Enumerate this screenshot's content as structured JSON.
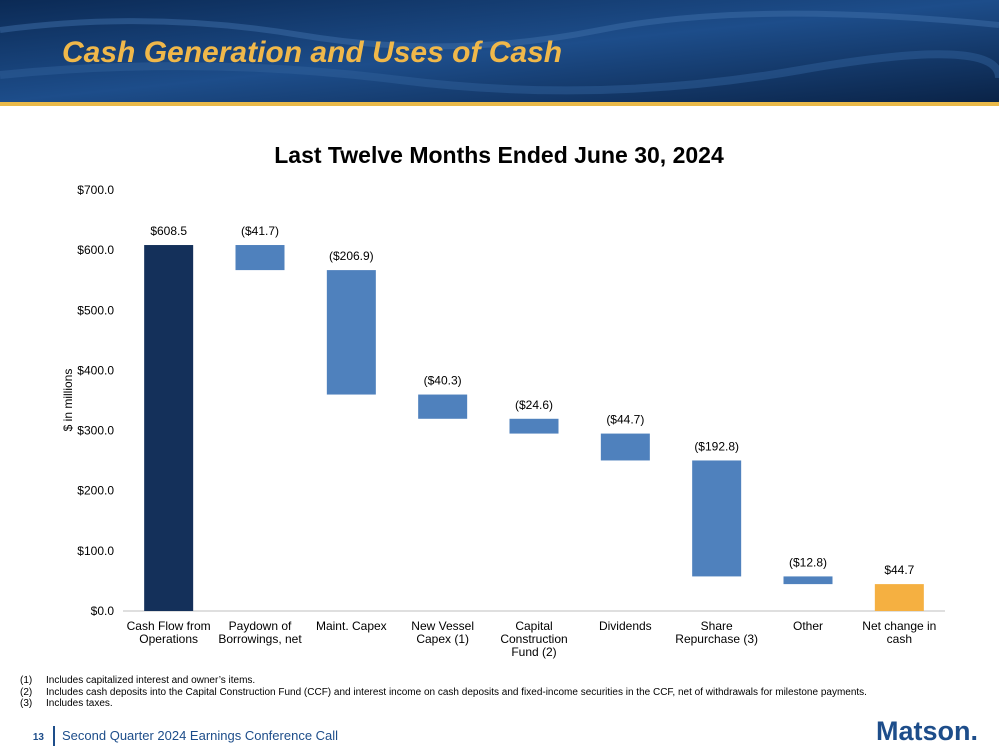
{
  "header": {
    "title": "Cash Generation and Uses of Cash"
  },
  "chart_data": {
    "type": "waterfall",
    "title": "Last Twelve Months Ended June 30, 2024",
    "y_label": "$ in millions",
    "categories": [
      "Cash Flow from Operations",
      "Paydown of Borrowings, net",
      "Maint. Capex",
      "New Vessel Capex (1)",
      "Capital Construction Fund (2)",
      "Dividends",
      "Share Repurchase (3)",
      "Other",
      "Net change in cash"
    ],
    "values": [
      608.5,
      -41.7,
      -206.9,
      -40.3,
      -24.6,
      -44.7,
      -192.8,
      -12.8,
      44.7
    ],
    "value_labels": [
      "$608.5",
      "($41.7)",
      "($206.9)",
      "($40.3)",
      "($24.6)",
      "($44.7)",
      "($192.8)",
      "($12.8)",
      "$44.7"
    ],
    "is_total": [
      true,
      false,
      false,
      false,
      false,
      false,
      false,
      false,
      true
    ],
    "colors": [
      "#14305a",
      "#4f81bd",
      "#4f81bd",
      "#4f81bd",
      "#4f81bd",
      "#4f81bd",
      "#4f81bd",
      "#4f81bd",
      "#f5b041"
    ],
    "ylim": [
      0,
      700
    ],
    "yticks": [
      {
        "value": 0,
        "label": "$0.0"
      },
      {
        "value": 100,
        "label": "$100.0"
      },
      {
        "value": 200,
        "label": "$200.0"
      },
      {
        "value": 300,
        "label": "$300.0"
      },
      {
        "value": 400,
        "label": "$400.0"
      },
      {
        "value": 500,
        "label": "$500.0"
      },
      {
        "value": 600,
        "label": "$600.0"
      },
      {
        "value": 700,
        "label": "$700.0"
      }
    ],
    "grid": false
  },
  "footnotes": [
    {
      "num": "(1)",
      "text": "Includes capitalized interest and owner’s items."
    },
    {
      "num": "(2)",
      "text": "Includes cash deposits into the Capital Construction Fund (CCF) and interest income on cash deposits and fixed-income securities in the CCF, net of withdrawals for milestone payments."
    },
    {
      "num": "(3)",
      "text": "Includes taxes."
    }
  ],
  "footer": {
    "page": "13",
    "text": "Second Quarter 2024 Earnings Conference Call",
    "logo": "Matson."
  }
}
